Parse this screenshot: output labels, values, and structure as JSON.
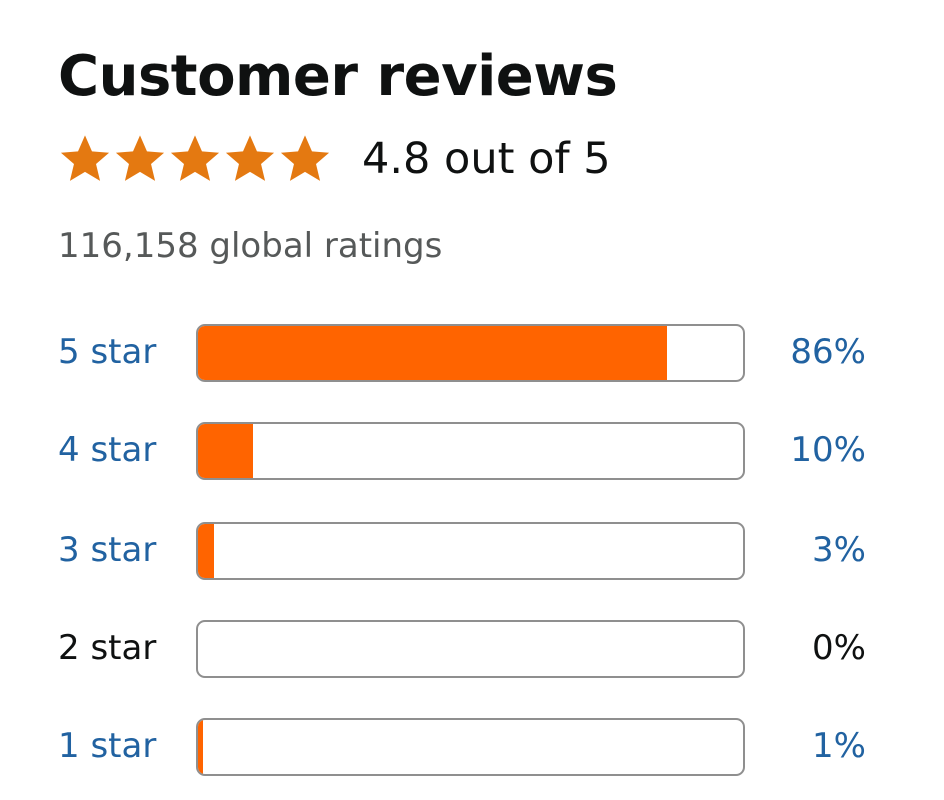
{
  "header": {
    "title": "Customer reviews"
  },
  "rating": {
    "stars": 4.8,
    "star_color": "#e47911",
    "average_label": "4.8 out of 5",
    "total_label": "116,158 global ratings"
  },
  "colors": {
    "bar_fill": "#ff6400",
    "link": "#2162a1"
  },
  "histogram": [
    {
      "label": "5 star",
      "percent_label": "86%",
      "percent": 86,
      "link": true
    },
    {
      "label": "4 star",
      "percent_label": "10%",
      "percent": 10,
      "link": true
    },
    {
      "label": "3 star",
      "percent_label": "3%",
      "percent": 3,
      "link": true
    },
    {
      "label": "2 star",
      "percent_label": "0%",
      "percent": 0,
      "link": false
    },
    {
      "label": "1 star",
      "percent_label": "1%",
      "percent": 1,
      "link": true
    }
  ]
}
